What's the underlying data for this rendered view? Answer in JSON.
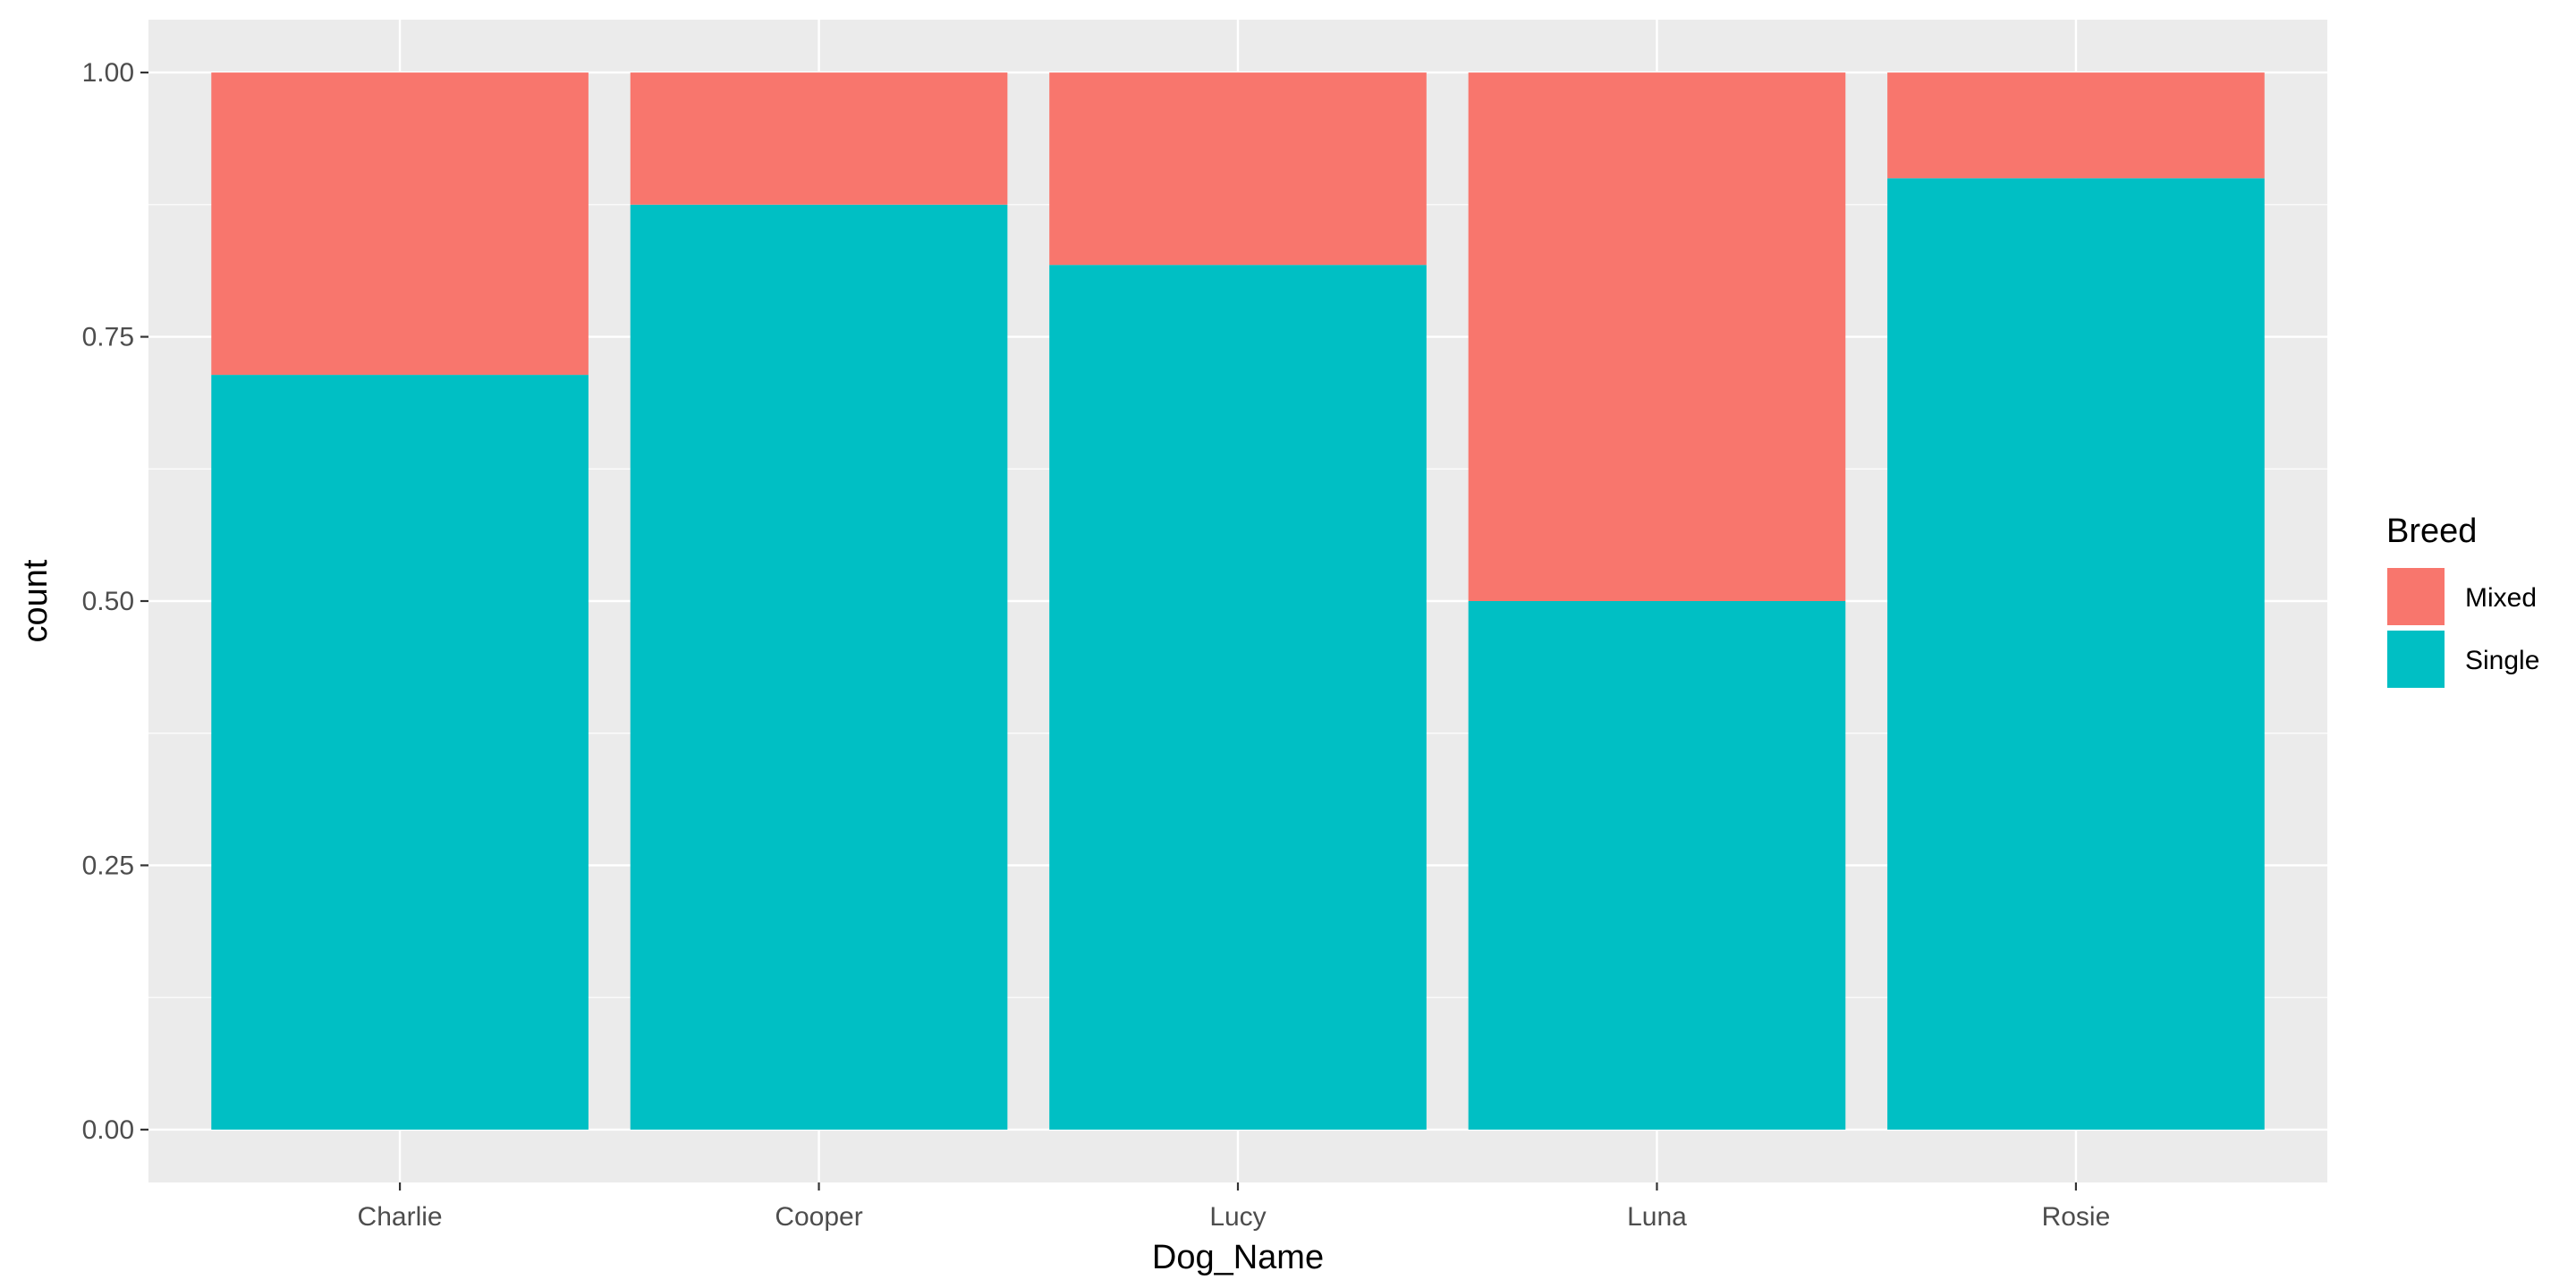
{
  "chart_data": {
    "type": "bar",
    "stacking": "fill",
    "title": "",
    "xlabel": "Dog_Name",
    "ylabel": "count",
    "categories": [
      "Charlie",
      "Cooper",
      "Lucy",
      "Luna",
      "Rosie"
    ],
    "series": [
      {
        "name": "Single",
        "color": "#00BFC4",
        "values": [
          0.714,
          0.875,
          0.818,
          0.5,
          0.9
        ]
      },
      {
        "name": "Mixed",
        "color": "#F8766D",
        "values": [
          0.286,
          0.125,
          0.182,
          0.5,
          0.1
        ]
      }
    ],
    "ylim": [
      -0.05,
      1.05
    ],
    "yticks": [
      0,
      0.25,
      0.5,
      0.75,
      1
    ],
    "ytick_labels": [
      "0.00",
      "0.25",
      "0.50",
      "0.75",
      "1.00"
    ],
    "grid": true,
    "panel_background": "#EBEBEB",
    "legend": {
      "title": "Breed",
      "position": "right",
      "entries": [
        {
          "label": "Mixed",
          "color": "#F8766D"
        },
        {
          "label": "Single",
          "color": "#00BFC4"
        }
      ]
    }
  }
}
